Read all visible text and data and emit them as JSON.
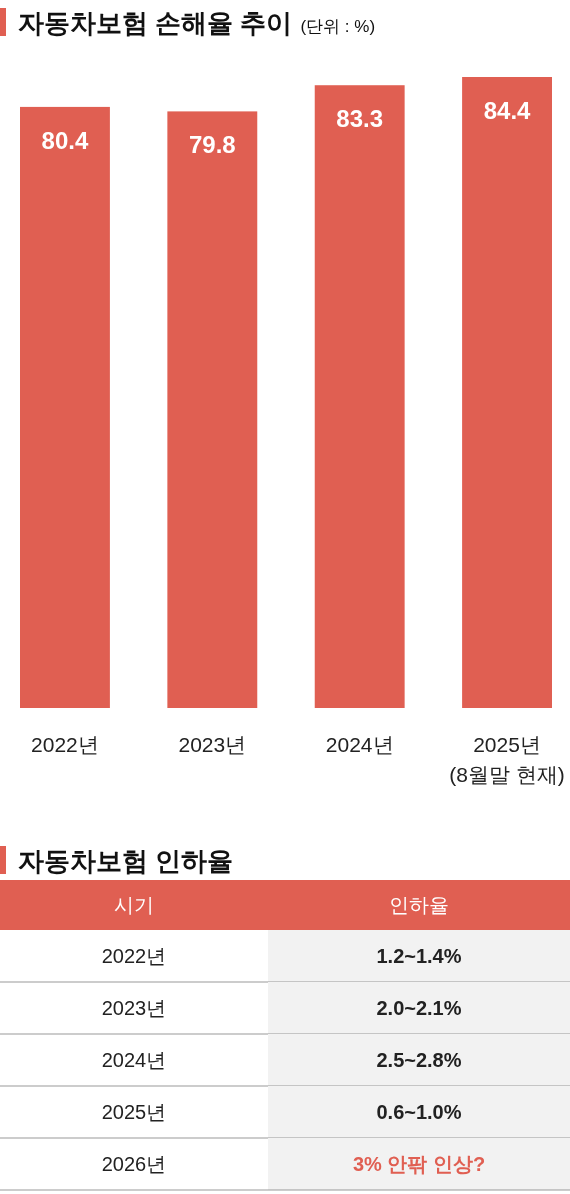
{
  "chart_data": {
    "type": "bar",
    "title": "자동차보험 손해율 추이",
    "subtitle": "(단위 : %)",
    "categories": [
      "2022년",
      "2023년",
      "2024년",
      "2025년\n(8월말 현재)"
    ],
    "values": [
      80.4,
      79.8,
      83.3,
      84.4
    ],
    "color": "#e05f52",
    "data_labels": true,
    "annotations": [
      "자동차보험 인하율",
      "시기",
      "인하율",
      "2022년",
      "1.2~1.4%",
      "2023년",
      "2.0~2.1%",
      "2024년",
      "2.5~2.8%",
      "2025년",
      "0.6~1.0%",
      "2026년",
      "3% 안팎 인상?"
    ]
  }
}
